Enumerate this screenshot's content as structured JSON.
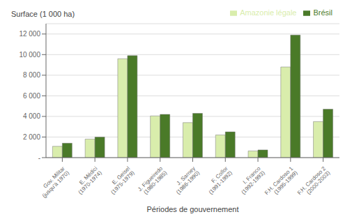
{
  "chart_data": {
    "type": "bar",
    "categories": [
      "Gov. Militar\n(jusqu’à 1970)",
      "E. Médici\n(1970-1974)",
      "E. Geisel\n(1975-1979)",
      "J. Figueiredo\n(1980-1985)",
      "J. Sarney\n(1986-1990)",
      "F. Collor\n(1991-1992)",
      "I. Franco\n(1992-1993)",
      "F.H. Cardoso 1\n(1995-1999)",
      "F.H. Cardoso 2\n(2000-2003)"
    ],
    "series": [
      {
        "name": "Amazonie légale",
        "color": "#d9edac",
        "values": [
          1100,
          1800,
          9600,
          4050,
          3400,
          2200,
          650,
          8800,
          3500
        ]
      },
      {
        "name": "Brésil",
        "color": "#4a7a28",
        "values": [
          1400,
          2000,
          9900,
          4200,
          4300,
          2500,
          750,
          11900,
          4700
        ]
      }
    ],
    "xlabel": "Périodes de gouvernement",
    "ylabel": "Surface (1 000 ha)",
    "ylim": [
      0,
      13000
    ],
    "yticks": [
      {
        "value": 0,
        "label": "-"
      },
      {
        "value": 2000,
        "label": "2 000"
      },
      {
        "value": 4000,
        "label": "4 000"
      },
      {
        "value": 6000,
        "label": "6 000"
      },
      {
        "value": 8000,
        "label": "8 000"
      },
      {
        "value": 10000,
        "label": "10 000"
      },
      {
        "value": 12000,
        "label": "12 000"
      }
    ],
    "grid": true,
    "legend": "top right"
  }
}
